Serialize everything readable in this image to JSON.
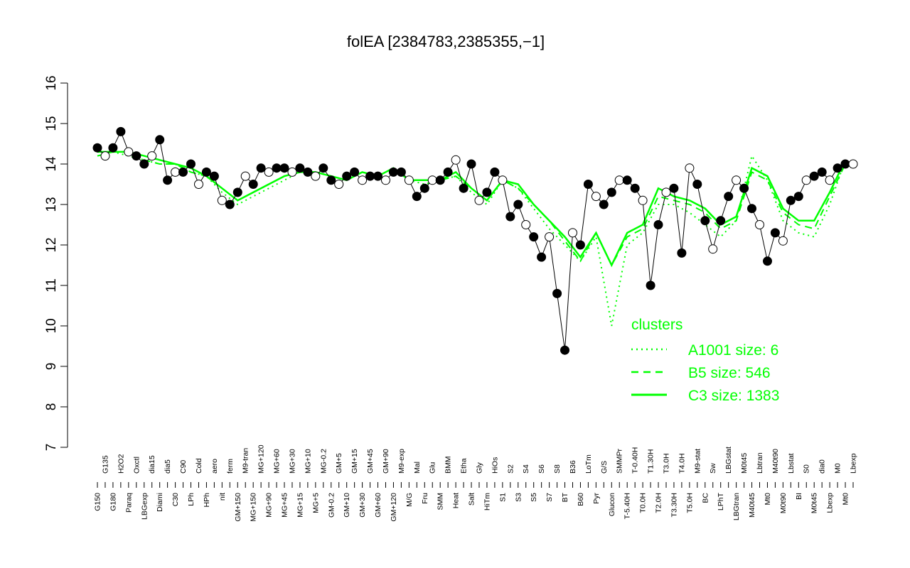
{
  "chart_data": {
    "type": "line",
    "title": "folEA [2384783,2385355,−1]",
    "xlabel": "",
    "ylabel": "",
    "ylim": [
      7,
      16
    ],
    "yticks": [
      "7",
      "8",
      "9",
      "10",
      "11",
      "12",
      "13",
      "14",
      "15",
      "16"
    ],
    "grid": false,
    "x_tick_labels": [
      "G150",
      "G135",
      "G180",
      "H2O2",
      "Paraq",
      "Oxctl",
      "LBGexp",
      "dia15",
      "Diami",
      "dia5",
      "C30",
      "C90",
      "LPh",
      "Cold",
      "HPh",
      "aero",
      "nit",
      "ferm",
      "GM+150",
      "M9-tran",
      "MG+150",
      "MG+120",
      "MG+90",
      "MG+60",
      "MG+45",
      "MG+30",
      "MG+15",
      "MG+10",
      "MG+5",
      "MG-0.2",
      "GM-0.2",
      "GM+5",
      "GM+10",
      "GM+15",
      "GM+30",
      "GM+45",
      "GM+60",
      "GM+90",
      "GM+120",
      "M9-exp",
      "M/G",
      "Mal",
      "Fru",
      "Glu",
      "SMM",
      "BMM",
      "Heat",
      "Etha",
      "Salt",
      "Gly",
      "HiTm",
      "HiOs",
      "S1",
      "S2",
      "S3",
      "S4",
      "S5",
      "S6",
      "S7",
      "S8",
      "BT",
      "B36",
      "B60",
      "LoTm",
      "Pyr",
      "G/S",
      "Glucon",
      "SMMPr",
      "T-5.40H",
      "T-0.40H",
      "T0.0H",
      "T1.30H",
      "T2.0H",
      "T3.0H",
      "T3.30H",
      "T4.0H",
      "T5.0H",
      "M9-stat",
      "BC",
      "Sw",
      "LPhT",
      "LBGstat",
      "LBGtran",
      "M0t45",
      "M40t45",
      "Lbtran",
      "Mt0",
      "M40t90",
      "M0t90",
      "Lbstat",
      "BI",
      "S0",
      "M0t45",
      "dia0",
      "Lbexp",
      "M0",
      "Mt0",
      "Lbexp"
    ],
    "series": [
      {
        "name": "A1001 size: 6",
        "style": "dotted",
        "x": [
          1,
          3,
          5,
          7,
          9,
          11,
          13,
          15,
          17,
          19,
          21,
          23,
          25,
          27,
          29,
          31,
          33,
          35,
          37,
          39,
          41,
          43,
          45,
          47,
          49,
          51,
          53,
          55,
          57,
          59,
          61,
          63,
          65,
          67,
          69,
          71,
          73,
          75,
          77,
          79,
          81,
          83,
          85,
          87,
          89,
          91,
          93,
          95,
          97
        ],
        "values": [
          14.3,
          14.3,
          14.2,
          14.1,
          14.0,
          14.0,
          13.8,
          13.7,
          13.3,
          13.0,
          13.2,
          13.4,
          13.6,
          13.8,
          13.8,
          13.7,
          13.6,
          13.8,
          13.7,
          13.9,
          13.6,
          13.5,
          13.6,
          13.7,
          13.3,
          13.0,
          13.6,
          13.4,
          12.9,
          12.4,
          12.0,
          11.6,
          12.2,
          10.0,
          12.0,
          12.3,
          13.0,
          13.0,
          12.8,
          12.5,
          12.2,
          12.6,
          14.2,
          13.6,
          12.6,
          12.3,
          12.2,
          13.0,
          14.1
        ]
      },
      {
        "name": "B5 size: 546",
        "style": "dashed",
        "x": [
          1,
          3,
          5,
          7,
          9,
          11,
          13,
          15,
          17,
          19,
          21,
          23,
          25,
          27,
          29,
          31,
          33,
          35,
          37,
          39,
          41,
          43,
          45,
          47,
          49,
          51,
          53,
          55,
          57,
          59,
          61,
          63,
          65,
          67,
          69,
          71,
          73,
          75,
          77,
          79,
          81,
          83,
          85,
          87,
          89,
          91,
          93,
          95,
          97
        ],
        "values": [
          14.2,
          14.3,
          14.3,
          14.1,
          14.0,
          14.0,
          13.8,
          13.7,
          13.4,
          13.1,
          13.3,
          13.5,
          13.7,
          13.8,
          13.8,
          13.7,
          13.6,
          13.8,
          13.7,
          13.9,
          13.6,
          13.6,
          13.6,
          13.7,
          13.4,
          13.1,
          13.6,
          13.4,
          13.0,
          12.6,
          12.1,
          11.6,
          12.3,
          11.5,
          12.2,
          12.4,
          13.2,
          13.1,
          13.0,
          12.8,
          12.4,
          12.6,
          13.8,
          13.6,
          12.8,
          12.5,
          12.4,
          13.2,
          14.0
        ]
      },
      {
        "name": "C3 size: 1383",
        "style": "solid",
        "x": [
          1,
          3,
          5,
          7,
          9,
          11,
          13,
          15,
          17,
          19,
          21,
          23,
          25,
          27,
          29,
          31,
          33,
          35,
          37,
          39,
          41,
          43,
          45,
          47,
          49,
          51,
          53,
          55,
          57,
          59,
          61,
          63,
          65,
          67,
          69,
          71,
          73,
          75,
          77,
          79,
          81,
          83,
          85,
          87,
          89,
          91,
          93,
          95,
          97
        ],
        "values": [
          14.3,
          14.3,
          14.3,
          14.2,
          14.1,
          14.0,
          13.9,
          13.7,
          13.4,
          13.1,
          13.3,
          13.5,
          13.7,
          13.8,
          13.8,
          13.7,
          13.6,
          13.8,
          13.7,
          13.9,
          13.6,
          13.6,
          13.6,
          13.8,
          13.4,
          13.1,
          13.6,
          13.5,
          13.0,
          12.6,
          12.2,
          11.7,
          12.3,
          11.5,
          12.3,
          12.5,
          13.4,
          13.2,
          13.1,
          12.9,
          12.5,
          12.7,
          13.9,
          13.7,
          12.9,
          12.6,
          12.6,
          13.3,
          14.1
        ]
      }
    ],
    "points": {
      "x": [
        1,
        2,
        3,
        4,
        5,
        6,
        7,
        8,
        9,
        10,
        11,
        12,
        13,
        14,
        15,
        16,
        17,
        18,
        19,
        20,
        21,
        22,
        23,
        24,
        25,
        26,
        27,
        28,
        29,
        30,
        31,
        32,
        33,
        34,
        35,
        36,
        37,
        38,
        39,
        40,
        41,
        42,
        43,
        44,
        45,
        46,
        47,
        48,
        49,
        50,
        51,
        52,
        53,
        54,
        55,
        56,
        57,
        58,
        59,
        60,
        61,
        62,
        63,
        64,
        65,
        66,
        67,
        68,
        69,
        70,
        71,
        72,
        73,
        74,
        75,
        76,
        77,
        78,
        79,
        80,
        81,
        82,
        83,
        84,
        85,
        86,
        87,
        88,
        89,
        90,
        91,
        92,
        93,
        94,
        95,
        96,
        97,
        98
      ],
      "values": [
        14.4,
        14.2,
        14.4,
        14.8,
        14.3,
        14.2,
        14.0,
        14.2,
        14.6,
        13.6,
        13.8,
        13.8,
        14.0,
        13.5,
        13.8,
        13.7,
        13.1,
        13.0,
        13.3,
        13.7,
        13.5,
        13.9,
        13.8,
        13.9,
        13.9,
        13.8,
        13.9,
        13.8,
        13.7,
        13.9,
        13.6,
        13.5,
        13.7,
        13.8,
        13.6,
        13.7,
        13.7,
        13.6,
        13.8,
        13.8,
        13.6,
        13.2,
        13.4,
        13.6,
        13.6,
        13.8,
        14.1,
        13.4,
        14.0,
        13.1,
        13.3,
        13.8,
        13.6,
        12.7,
        13.0,
        12.5,
        12.2,
        11.7,
        12.2,
        10.8,
        9.4,
        12.3,
        12.0,
        13.5,
        13.2,
        13.0,
        13.3,
        13.6,
        13.6,
        13.4,
        13.1,
        11.0,
        12.5,
        13.3,
        13.4,
        11.8,
        13.9,
        13.5,
        12.6,
        11.9,
        12.6,
        13.2,
        13.6,
        13.4,
        12.9,
        12.5,
        11.6,
        12.3,
        12.1,
        13.1,
        13.2,
        13.6,
        13.7,
        13.8,
        13.6,
        13.9,
        14.0,
        14.0
      ]
    },
    "legend": {
      "title": "clusters",
      "position": "right"
    },
    "colors": {
      "line": "#00ff00",
      "axis": "#000000",
      "point_stroke": "#000000"
    }
  }
}
